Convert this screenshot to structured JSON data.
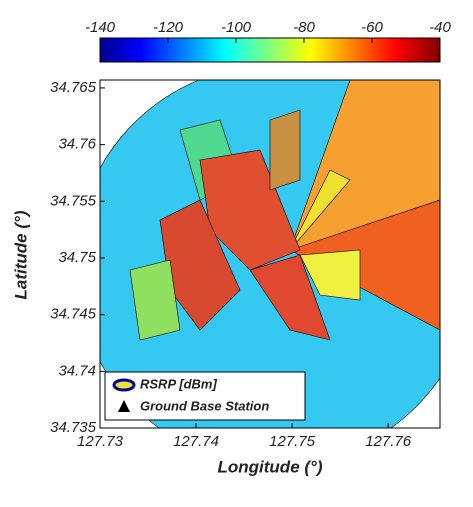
{
  "chart_data": {
    "type": "heatmap",
    "x_label": "Longitude (°)",
    "y_label": "Latitude (°)",
    "xlim": [
      127.73,
      127.7654
    ],
    "xticks": [
      127.73,
      127.74,
      127.75,
      127.76
    ],
    "ylim": [
      34.735,
      34.7657
    ],
    "yticks": [
      34.735,
      34.74,
      34.745,
      34.75,
      34.755,
      34.76,
      34.765
    ],
    "colorbar": {
      "lim": [
        -140,
        -40
      ],
      "ticks": [
        -140,
        -120,
        -100,
        -80,
        -60,
        -40
      ]
    },
    "legend": [
      "RSRP [dBm]",
      "Ground Base Station"
    ]
  }
}
